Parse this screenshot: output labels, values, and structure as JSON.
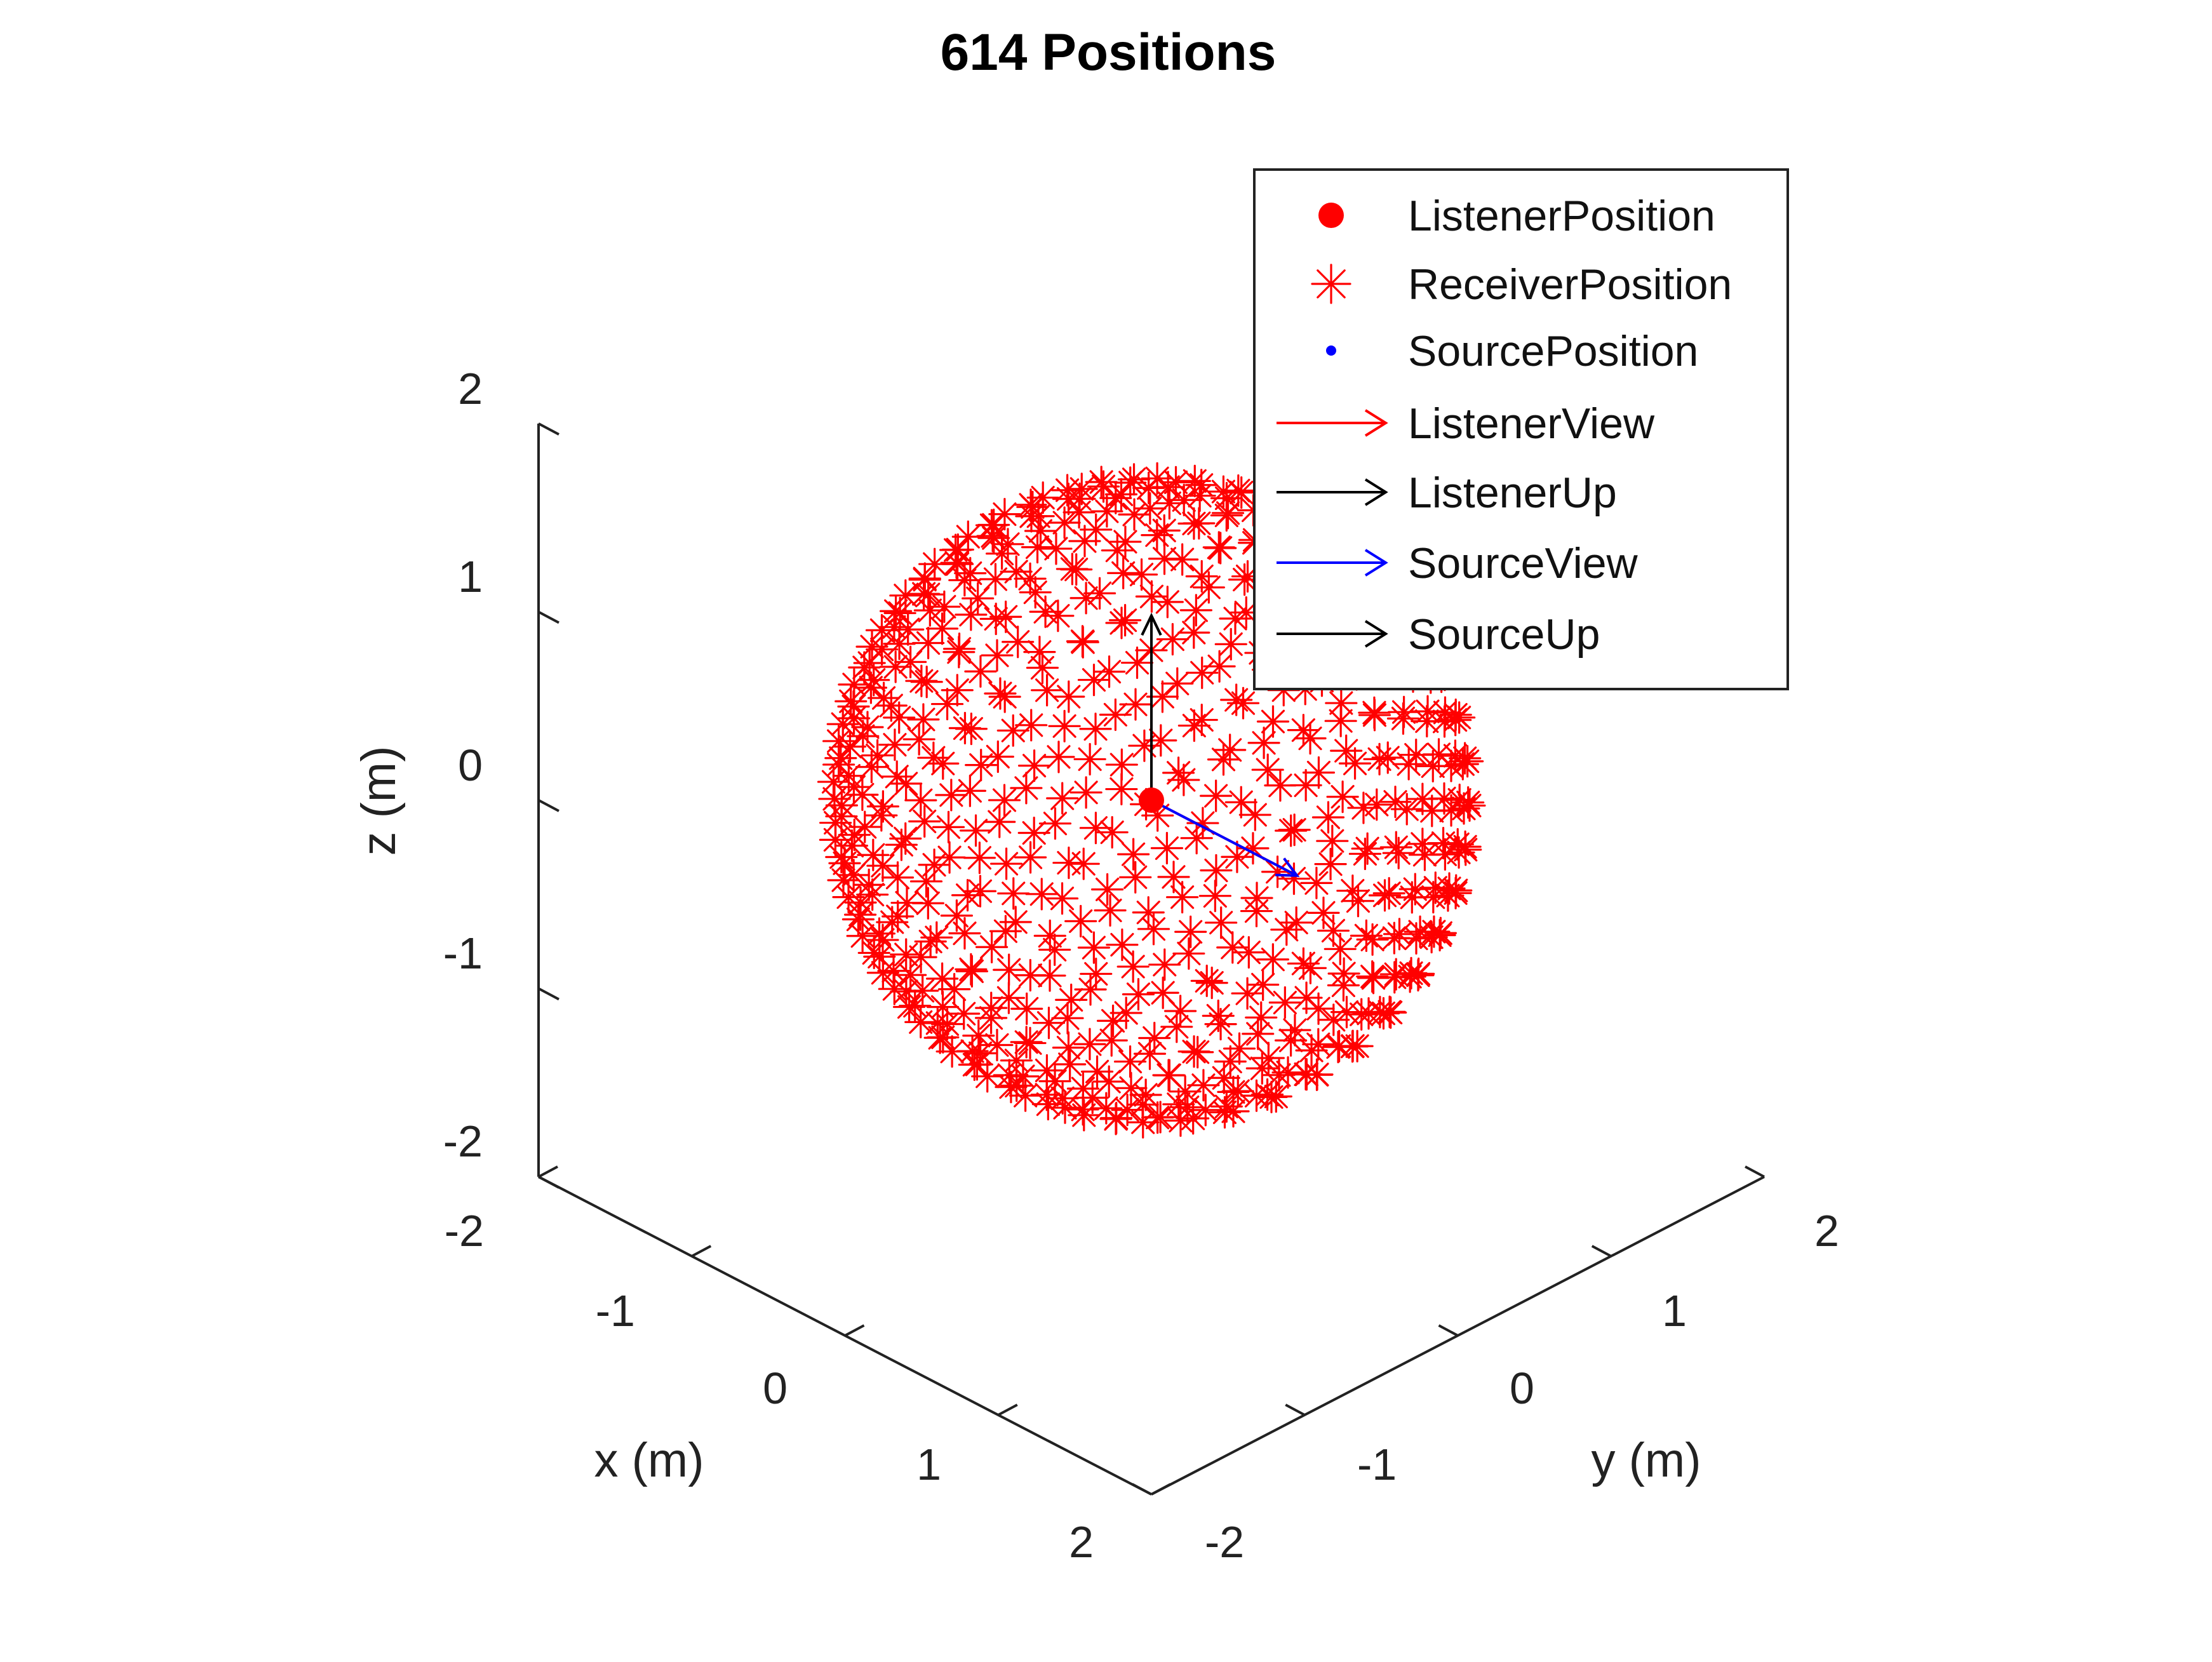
{
  "chart_data": {
    "type": "scatter",
    "title": "614 Positions",
    "projection": "3d-isometric",
    "xlabel": "x (m)",
    "ylabel": "y (m)",
    "zlabel": "z (m)",
    "xlim": [
      -2,
      2
    ],
    "ylim": [
      -2,
      2
    ],
    "zlim": [
      -2,
      2
    ],
    "x_ticks": [
      "-2",
      "-1",
      "0",
      "1",
      "2"
    ],
    "y_ticks": [
      "-2",
      "-1",
      "0",
      "1",
      "2"
    ],
    "z_ticks": [
      "-2",
      "-1",
      "0",
      "1",
      "2"
    ],
    "grid": false,
    "legend_position": "top-right",
    "series": [
      {
        "name": "ListenerPosition",
        "marker": "filled-circle",
        "color": "#ff0000",
        "points": [
          [
            0,
            0,
            0
          ]
        ]
      },
      {
        "name": "ReceiverPosition",
        "marker": "asterisk",
        "color": "#ff0000",
        "count": 614,
        "distribution": "sphere",
        "radius": 1.47,
        "center": [
          0,
          0,
          0
        ]
      },
      {
        "name": "SourcePosition",
        "marker": "dot",
        "color": "#0000ff",
        "points": []
      },
      {
        "name": "ListenerView",
        "marker": "arrow",
        "color": "#ff0000",
        "vector": [
          1,
          0,
          0
        ]
      },
      {
        "name": "ListenerUp",
        "marker": "arrow",
        "color": "#000000",
        "vector": [
          0,
          0,
          1
        ]
      },
      {
        "name": "SourceView",
        "marker": "arrow",
        "color": "#0000ff",
        "vector": [
          1,
          0,
          0
        ]
      },
      {
        "name": "SourceUp",
        "marker": "arrow",
        "color": "#000000",
        "vector": [
          0,
          0,
          1
        ]
      }
    ]
  }
}
